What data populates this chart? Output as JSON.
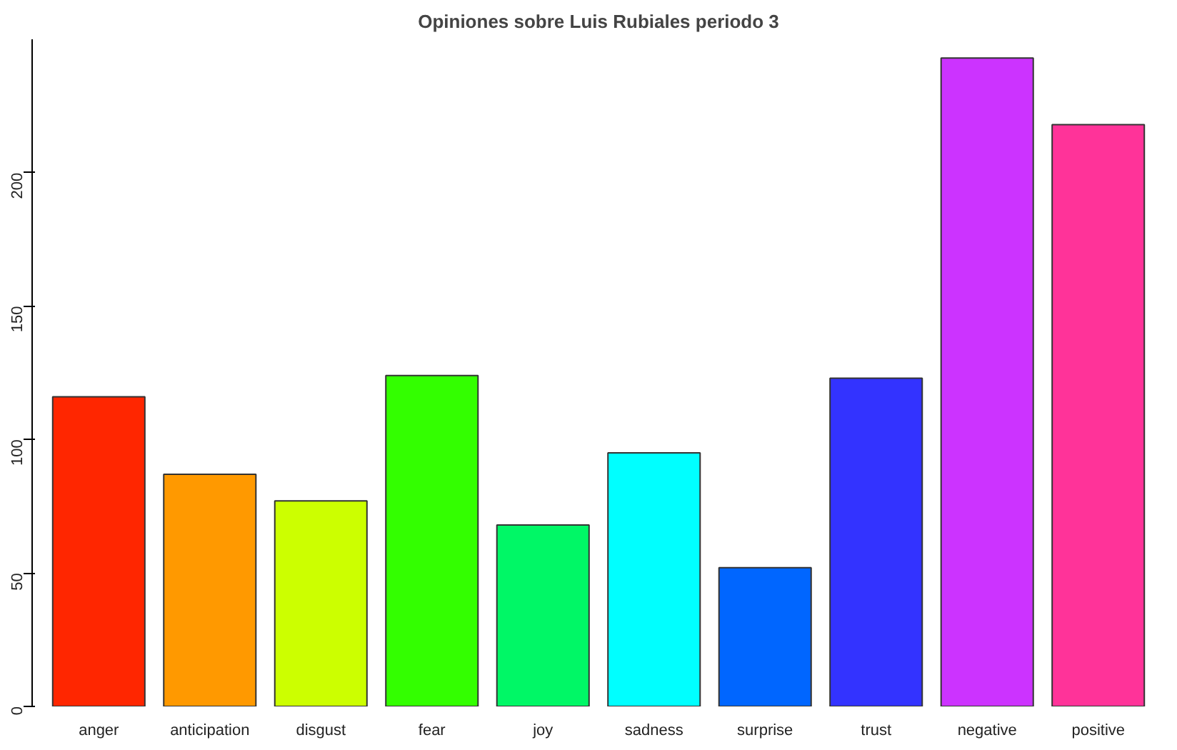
{
  "chart_data": {
    "type": "bar",
    "title": "Opiniones sobre Luis Rubiales periodo 3",
    "categories": [
      "anger",
      "anticipation",
      "disgust",
      "fear",
      "joy",
      "sadness",
      "surprise",
      "trust",
      "negative",
      "positive"
    ],
    "values": [
      116,
      87,
      77,
      124,
      68,
      95,
      52,
      123,
      243,
      218
    ],
    "colors": [
      "#ff2600",
      "#ff9900",
      "#ccff00",
      "#33ff00",
      "#00f766",
      "#00ffff",
      "#0066ff",
      "#3333ff",
      "#cc33ff",
      "#ff3399"
    ],
    "ylim": [
      0,
      250
    ],
    "yticks": [
      0,
      50,
      100,
      150,
      200
    ],
    "grid": false
  }
}
